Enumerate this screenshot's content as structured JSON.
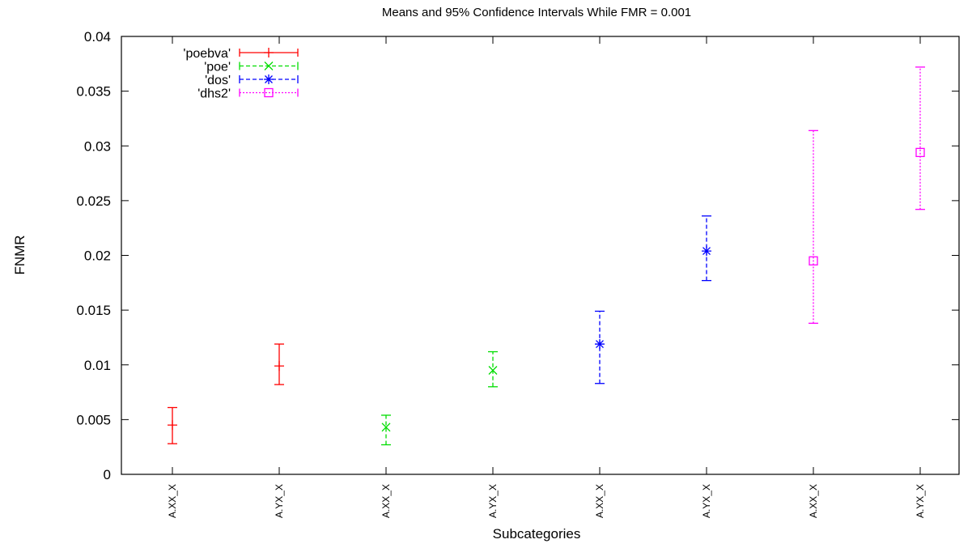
{
  "chart_data": {
    "type": "errorbar",
    "title": "Means and 95% Confidence Intervals While FMR = 0.001",
    "xlabel": "Subcategories",
    "ylabel": "FNMR",
    "ylim": [
      0,
      0.04
    ],
    "yticks": [
      0,
      0.005,
      0.01,
      0.015,
      0.02,
      0.025,
      0.03,
      0.035,
      0.04
    ],
    "ytick_labels": [
      "0",
      "0.005",
      "0.01",
      "0.015",
      "0.02",
      "0.025",
      "0.03",
      "0.035",
      "0.04"
    ],
    "grid": false,
    "legend_position": "top-left",
    "categories": [
      "A.XX_X",
      "A.YX_X",
      "A.XX_X",
      "A.YX_X",
      "A.XX_X",
      "A.YX_X",
      "A.XX_X",
      "A.YX_X"
    ],
    "series": [
      {
        "name": "'poebva'",
        "color": "#ff0000",
        "marker": "plus",
        "line": "solid",
        "points": [
          {
            "x": 1,
            "mean": 0.0045,
            "low": 0.0028,
            "high": 0.0061
          },
          {
            "x": 2,
            "mean": 0.0099,
            "low": 0.0082,
            "high": 0.0119
          }
        ]
      },
      {
        "name": "'poe'",
        "color": "#00dd00",
        "marker": "cross",
        "line": "dashed",
        "points": [
          {
            "x": 3,
            "mean": 0.0043,
            "low": 0.0027,
            "high": 0.0054
          },
          {
            "x": 4,
            "mean": 0.0095,
            "low": 0.008,
            "high": 0.0112
          }
        ]
      },
      {
        "name": "'dos'",
        "color": "#0000ff",
        "marker": "star",
        "line": "dashed",
        "points": [
          {
            "x": 5,
            "mean": 0.0119,
            "low": 0.0083,
            "high": 0.0149
          },
          {
            "x": 6,
            "mean": 0.0204,
            "low": 0.0177,
            "high": 0.0236
          }
        ]
      },
      {
        "name": "'dhs2'",
        "color": "#ff00ff",
        "marker": "square",
        "line": "dotted",
        "points": [
          {
            "x": 7,
            "mean": 0.0195,
            "low": 0.0138,
            "high": 0.0314
          },
          {
            "x": 8,
            "mean": 0.0294,
            "low": 0.0242,
            "high": 0.0372
          }
        ]
      }
    ]
  }
}
